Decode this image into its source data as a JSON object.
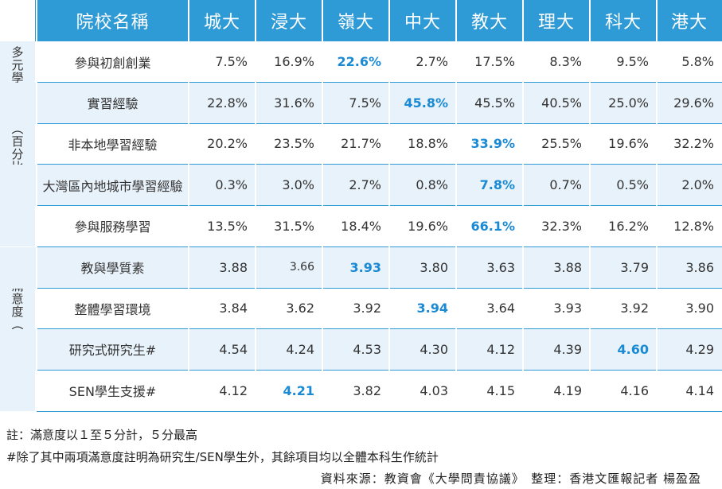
{
  "header": {
    "name_col": "院校名稱",
    "universities": [
      "城大",
      "浸大",
      "嶺大",
      "中大",
      "教大",
      "理大",
      "科大",
      "港大"
    ]
  },
  "groups": [
    {
      "label": "多元學習機會（百分比）"
    },
    {
      "label": "學生滿意度（計分）"
    }
  ],
  "rows": [
    {
      "name": "參與初創創業",
      "values": [
        "7.5%",
        "16.9%",
        "22.6%",
        "2.7%",
        "17.5%",
        "8.3%",
        "9.5%",
        "5.8%"
      ],
      "highlight_index": 2
    },
    {
      "name": "實習經驗",
      "values": [
        "22.8%",
        "31.6%",
        "7.5%",
        "45.8%",
        "45.5%",
        "40.5%",
        "25.0%",
        "29.6%"
      ],
      "highlight_index": 3
    },
    {
      "name": "非本地學習經驗",
      "values": [
        "20.2%",
        "23.5%",
        "21.7%",
        "18.8%",
        "33.9%",
        "25.5%",
        "19.6%",
        "32.2%"
      ],
      "highlight_index": 4
    },
    {
      "name": "大灣區內地城市學習經驗",
      "values": [
        "0.3%",
        "3.0%",
        "2.7%",
        "0.8%",
        "7.8%",
        "0.7%",
        "0.5%",
        "2.0%"
      ],
      "highlight_index": 4
    },
    {
      "name": "參與服務學習",
      "values": [
        "13.5%",
        "31.5%",
        "18.4%",
        "19.6%",
        "66.1%",
        "32.3%",
        "16.2%",
        "12.8%"
      ],
      "highlight_index": 4
    },
    {
      "name": "教與學質素",
      "values": [
        "3.88",
        "3.66",
        "3.93",
        "3.80",
        "3.63",
        "3.88",
        "3.79",
        "3.86"
      ],
      "highlight_index": 2
    },
    {
      "name": "整體學習環境",
      "values": [
        "3.84",
        "3.62",
        "3.92",
        "3.94",
        "3.64",
        "3.93",
        "3.92",
        "3.90"
      ],
      "highlight_index": 3
    },
    {
      "name": "研究式研究生#",
      "values": [
        "4.54",
        "4.24",
        "4.53",
        "4.30",
        "4.12",
        "4.39",
        "4.60",
        "4.29"
      ],
      "highlight_index": 6
    },
    {
      "name": "SEN學生支援#",
      "values": [
        "4.12",
        "4.21",
        "3.82",
        "4.03",
        "4.15",
        "4.19",
        "4.16",
        "4.14"
      ],
      "highlight_index": 1
    }
  ],
  "notes": {
    "line1": "註：滿意度以１至５分計，５分最高",
    "line2": "#除了其中兩項滿意度註明為研究生/SEN學生外，其餘項目均以全體本科生作統計"
  },
  "source": "資料來源：教資會《大學問責協議》　整理：香港文匯報記者 楊盈盈",
  "colors": {
    "header_bg": "#2e9ad6",
    "highlight": "#1a8ad4",
    "alt_row_bg": "#e8f2fa"
  }
}
